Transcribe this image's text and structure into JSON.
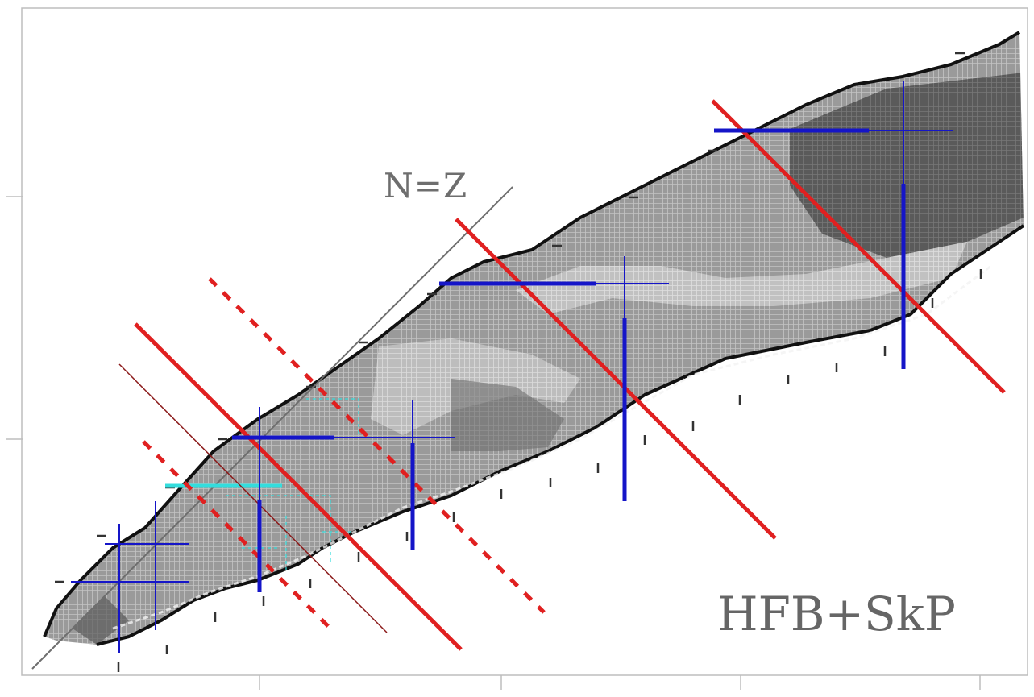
{
  "labels": {
    "nz_line": "N=Z",
    "model": "HFB+SkP"
  },
  "colors": {
    "frame": "#bdbdbd",
    "chart_outline": "#111111",
    "shells": "#e02020",
    "lines": "#1515c8",
    "cyan_markers": "#33dddd",
    "nz_line": "#6e6e6e"
  }
}
